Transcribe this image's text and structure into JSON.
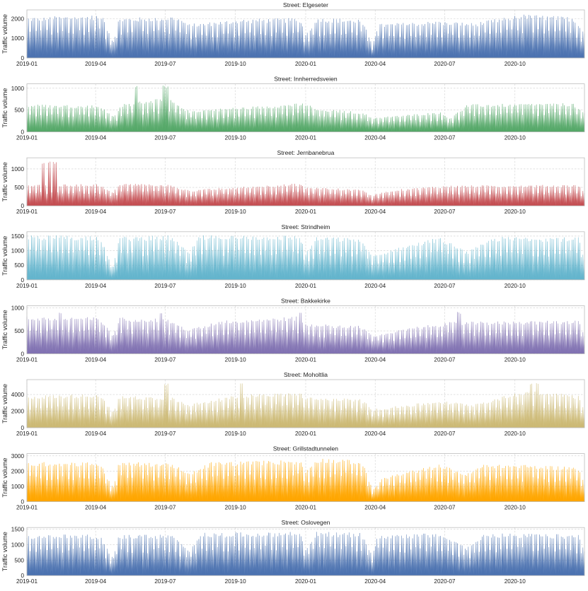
{
  "chart_data": [
    {
      "type": "area",
      "title": "Street: Elgeseter",
      "ylabel": "Traffic volume",
      "xlabel": "",
      "color": "#4c72b0",
      "ylim": [
        0,
        2450
      ],
      "yticks": [
        0,
        1000,
        2000
      ],
      "x_range": [
        "2019-01-01",
        "2020-12-31"
      ],
      "x_ticks": [
        "2019-01",
        "2019-04",
        "2019-07",
        "2019-10",
        "2020-01",
        "2020-04",
        "2020-07",
        "2020-10"
      ],
      "weekday_peak": 2050,
      "spike": null,
      "grid": true,
      "series": [
        {
          "name": "Elgeseter",
          "profile": [
            [
              0,
              2050
            ],
            [
              0.135,
              2150
            ],
            [
              0.155,
              800
            ],
            [
              0.165,
              2000
            ],
            [
              0.27,
              2100
            ],
            [
              0.29,
              1700
            ],
            [
              0.39,
              1950
            ],
            [
              0.49,
              2000
            ],
            [
              0.5,
              1200
            ],
            [
              0.52,
              2000
            ],
            [
              0.6,
              1950
            ],
            [
              0.62,
              700
            ],
            [
              0.63,
              1700
            ],
            [
              0.74,
              1850
            ],
            [
              0.8,
              1750
            ],
            [
              0.86,
              2050
            ],
            [
              0.88,
              2200
            ],
            [
              0.98,
              2050
            ],
            [
              1,
              1300
            ]
          ]
        }
      ]
    },
    {
      "type": "area",
      "title": "Street: Innherredsveien",
      "ylabel": "Traffic volume",
      "xlabel": "",
      "color": "#55a868",
      "ylim": [
        0,
        1100
      ],
      "yticks": [
        0,
        500,
        1000
      ],
      "x_range": [
        "2019-01-01",
        "2020-12-31"
      ],
      "x_ticks": [
        "2019-01",
        "2019-04",
        "2019-07",
        "2019-10",
        "2020-01",
        "2020-04",
        "2020-07",
        "2020-10"
      ],
      "weekday_peak": 620,
      "spike": {
        "value": 1060,
        "positions": [
          0.195,
          0.245,
          0.25
        ]
      },
      "grid": true,
      "series": [
        {
          "name": "Innherredsveien",
          "profile": [
            [
              0,
              620
            ],
            [
              0.13,
              600
            ],
            [
              0.155,
              350
            ],
            [
              0.17,
              620
            ],
            [
              0.25,
              780
            ],
            [
              0.29,
              480
            ],
            [
              0.39,
              560
            ],
            [
              0.5,
              650
            ],
            [
              0.52,
              520
            ],
            [
              0.6,
              450
            ],
            [
              0.62,
              320
            ],
            [
              0.74,
              450
            ],
            [
              0.76,
              320
            ],
            [
              0.79,
              620
            ],
            [
              0.98,
              650
            ],
            [
              1,
              420
            ]
          ]
        }
      ]
    },
    {
      "type": "area",
      "title": "Street: Jernbanebrua",
      "ylabel": "Traffic volume",
      "xlabel": "",
      "color": "#c44e52",
      "ylim": [
        0,
        1300
      ],
      "yticks": [
        0,
        500,
        1000
      ],
      "x_range": [
        "2019-01-01",
        "2020-12-31"
      ],
      "x_ticks": [
        "2019-01",
        "2019-04",
        "2019-07",
        "2019-10",
        "2020-01",
        "2020-04",
        "2020-07",
        "2020-10"
      ],
      "weekday_peak": 560,
      "spike": {
        "value": 1200,
        "positions": [
          0.03,
          0.04,
          0.05
        ]
      },
      "grid": true,
      "series": [
        {
          "name": "Jernbanebrua",
          "profile": [
            [
              0,
              560
            ],
            [
              0.13,
              580
            ],
            [
              0.155,
              350
            ],
            [
              0.165,
              600
            ],
            [
              0.25,
              580
            ],
            [
              0.29,
              420
            ],
            [
              0.49,
              600
            ],
            [
              0.5,
              500
            ],
            [
              0.6,
              440
            ],
            [
              0.62,
              280
            ],
            [
              0.65,
              420
            ],
            [
              0.75,
              540
            ],
            [
              0.99,
              560
            ],
            [
              1,
              350
            ]
          ]
        }
      ]
    },
    {
      "type": "area",
      "title": "Street: Strindheim",
      "ylabel": "Traffic volume",
      "xlabel": "",
      "color": "#64b5cd",
      "ylim": [
        0,
        1650
      ],
      "yticks": [
        0,
        500,
        1000,
        1500
      ],
      "x_range": [
        "2019-01-01",
        "2020-12-31"
      ],
      "x_ticks": [
        "2019-01",
        "2019-04",
        "2019-07",
        "2019-10",
        "2020-01",
        "2020-04",
        "2020-07",
        "2020-10"
      ],
      "weekday_peak": 1500,
      "spike": null,
      "grid": true,
      "series": [
        {
          "name": "Strindheim",
          "profile": [
            [
              0,
              1500
            ],
            [
              0.13,
              1500
            ],
            [
              0.155,
              400
            ],
            [
              0.165,
              1450
            ],
            [
              0.26,
              1500
            ],
            [
              0.29,
              900
            ],
            [
              0.31,
              1500
            ],
            [
              0.49,
              1500
            ],
            [
              0.5,
              900
            ],
            [
              0.52,
              1450
            ],
            [
              0.6,
              1400
            ],
            [
              0.62,
              800
            ],
            [
              0.66,
              1050
            ],
            [
              0.74,
              1450
            ],
            [
              0.79,
              950
            ],
            [
              0.84,
              1450
            ],
            [
              0.99,
              1450
            ],
            [
              1,
              700
            ]
          ]
        }
      ]
    },
    {
      "type": "area",
      "title": "Street: Bakkekirke",
      "ylabel": "Traffic volume",
      "xlabel": "",
      "color": "#8172b2",
      "ylim": [
        0,
        1050
      ],
      "yticks": [
        0,
        500,
        1000
      ],
      "x_range": [
        "2019-01-01",
        "2020-12-31"
      ],
      "x_ticks": [
        "2019-01",
        "2019-04",
        "2019-07",
        "2019-10",
        "2020-01",
        "2020-04",
        "2020-07",
        "2020-10"
      ],
      "weekday_peak": 800,
      "spike": {
        "value": 920,
        "positions": [
          0.06,
          0.24,
          0.49,
          0.775
        ]
      },
      "grid": true,
      "series": [
        {
          "name": "Bakkekirke",
          "profile": [
            [
              0,
              800
            ],
            [
              0.13,
              780
            ],
            [
              0.155,
              400
            ],
            [
              0.165,
              780
            ],
            [
              0.25,
              760
            ],
            [
              0.29,
              520
            ],
            [
              0.35,
              720
            ],
            [
              0.49,
              800
            ],
            [
              0.5,
              650
            ],
            [
              0.6,
              600
            ],
            [
              0.62,
              400
            ],
            [
              0.7,
              580
            ],
            [
              0.76,
              680
            ],
            [
              0.99,
              720
            ],
            [
              1,
              400
            ]
          ]
        }
      ]
    },
    {
      "type": "area",
      "title": "Street: Moholtlia",
      "ylabel": "Traffic volume",
      "xlabel": "",
      "color": "#ccb974",
      "ylim": [
        0,
        5800
      ],
      "yticks": [
        0,
        2000,
        4000
      ],
      "x_range": [
        "2019-01-01",
        "2020-12-31"
      ],
      "x_ticks": [
        "2019-01",
        "2019-04",
        "2019-07",
        "2019-10",
        "2020-01",
        "2020-04",
        "2020-07",
        "2020-10"
      ],
      "weekday_peak": 3800,
      "spike": {
        "value": 5400,
        "positions": [
          0.25,
          0.385,
          0.905,
          0.915
        ]
      },
      "grid": true,
      "series": [
        {
          "name": "Moholtlia",
          "profile": [
            [
              0,
              3800
            ],
            [
              0.13,
              4000
            ],
            [
              0.155,
              1800
            ],
            [
              0.165,
              3800
            ],
            [
              0.26,
              3600
            ],
            [
              0.29,
              2800
            ],
            [
              0.39,
              4000
            ],
            [
              0.49,
              4200
            ],
            [
              0.5,
              3600
            ],
            [
              0.6,
              3400
            ],
            [
              0.62,
              2200
            ],
            [
              0.74,
              3200
            ],
            [
              0.8,
              2800
            ],
            [
              0.9,
              4500
            ],
            [
              0.99,
              3800
            ],
            [
              1,
              2200
            ]
          ]
        }
      ]
    },
    {
      "type": "area",
      "title": "Street: Grillstadtunnelen",
      "ylabel": "Traffic volume",
      "xlabel": "",
      "color": "#ffa600",
      "ylim": [
        0,
        3150
      ],
      "yticks": [
        0,
        1000,
        2000,
        3000
      ],
      "x_range": [
        "2019-01-01",
        "2020-12-31"
      ],
      "x_ticks": [
        "2019-01",
        "2019-04",
        "2019-07",
        "2019-10",
        "2020-01",
        "2020-04",
        "2020-07",
        "2020-10"
      ],
      "weekday_peak": 2550,
      "spike": null,
      "grid": true,
      "series": [
        {
          "name": "Grillstadtunnelen",
          "profile": [
            [
              0,
              2550
            ],
            [
              0.13,
              2550
            ],
            [
              0.155,
              900
            ],
            [
              0.165,
              2550
            ],
            [
              0.26,
              2500
            ],
            [
              0.29,
              1800
            ],
            [
              0.33,
              2550
            ],
            [
              0.49,
              2700
            ],
            [
              0.5,
              2000
            ],
            [
              0.52,
              2800
            ],
            [
              0.6,
              2700
            ],
            [
              0.62,
              800
            ],
            [
              0.64,
              1600
            ],
            [
              0.74,
              2400
            ],
            [
              0.79,
              1800
            ],
            [
              0.82,
              2450
            ],
            [
              0.99,
              2250
            ],
            [
              1,
              1100
            ]
          ]
        }
      ]
    },
    {
      "type": "area",
      "title": "Street: Oslovegen",
      "ylabel": "Traffic volume",
      "xlabel": "",
      "color": "#4c72b0",
      "ylim": [
        0,
        1550
      ],
      "yticks": [
        0,
        500,
        1000,
        1500
      ],
      "x_range": [
        "2019-01-01",
        "2020-12-31"
      ],
      "x_ticks": [
        "2019-01",
        "2019-04",
        "2019-07",
        "2019-10",
        "2020-01",
        "2020-04",
        "2020-07",
        "2020-10"
      ],
      "weekday_peak": 1300,
      "spike": null,
      "grid": true,
      "series": [
        {
          "name": "Oslovegen",
          "profile": [
            [
              0,
              1300
            ],
            [
              0.13,
              1300
            ],
            [
              0.155,
              550
            ],
            [
              0.165,
              1300
            ],
            [
              0.26,
              1300
            ],
            [
              0.29,
              800
            ],
            [
              0.31,
              1350
            ],
            [
              0.49,
              1400
            ],
            [
              0.5,
              900
            ],
            [
              0.52,
              1400
            ],
            [
              0.6,
              1350
            ],
            [
              0.62,
              700
            ],
            [
              0.63,
              1300
            ],
            [
              0.74,
              1350
            ],
            [
              0.79,
              900
            ],
            [
              0.82,
              1350
            ],
            [
              0.99,
              1300
            ],
            [
              1,
              800
            ]
          ]
        }
      ]
    }
  ]
}
